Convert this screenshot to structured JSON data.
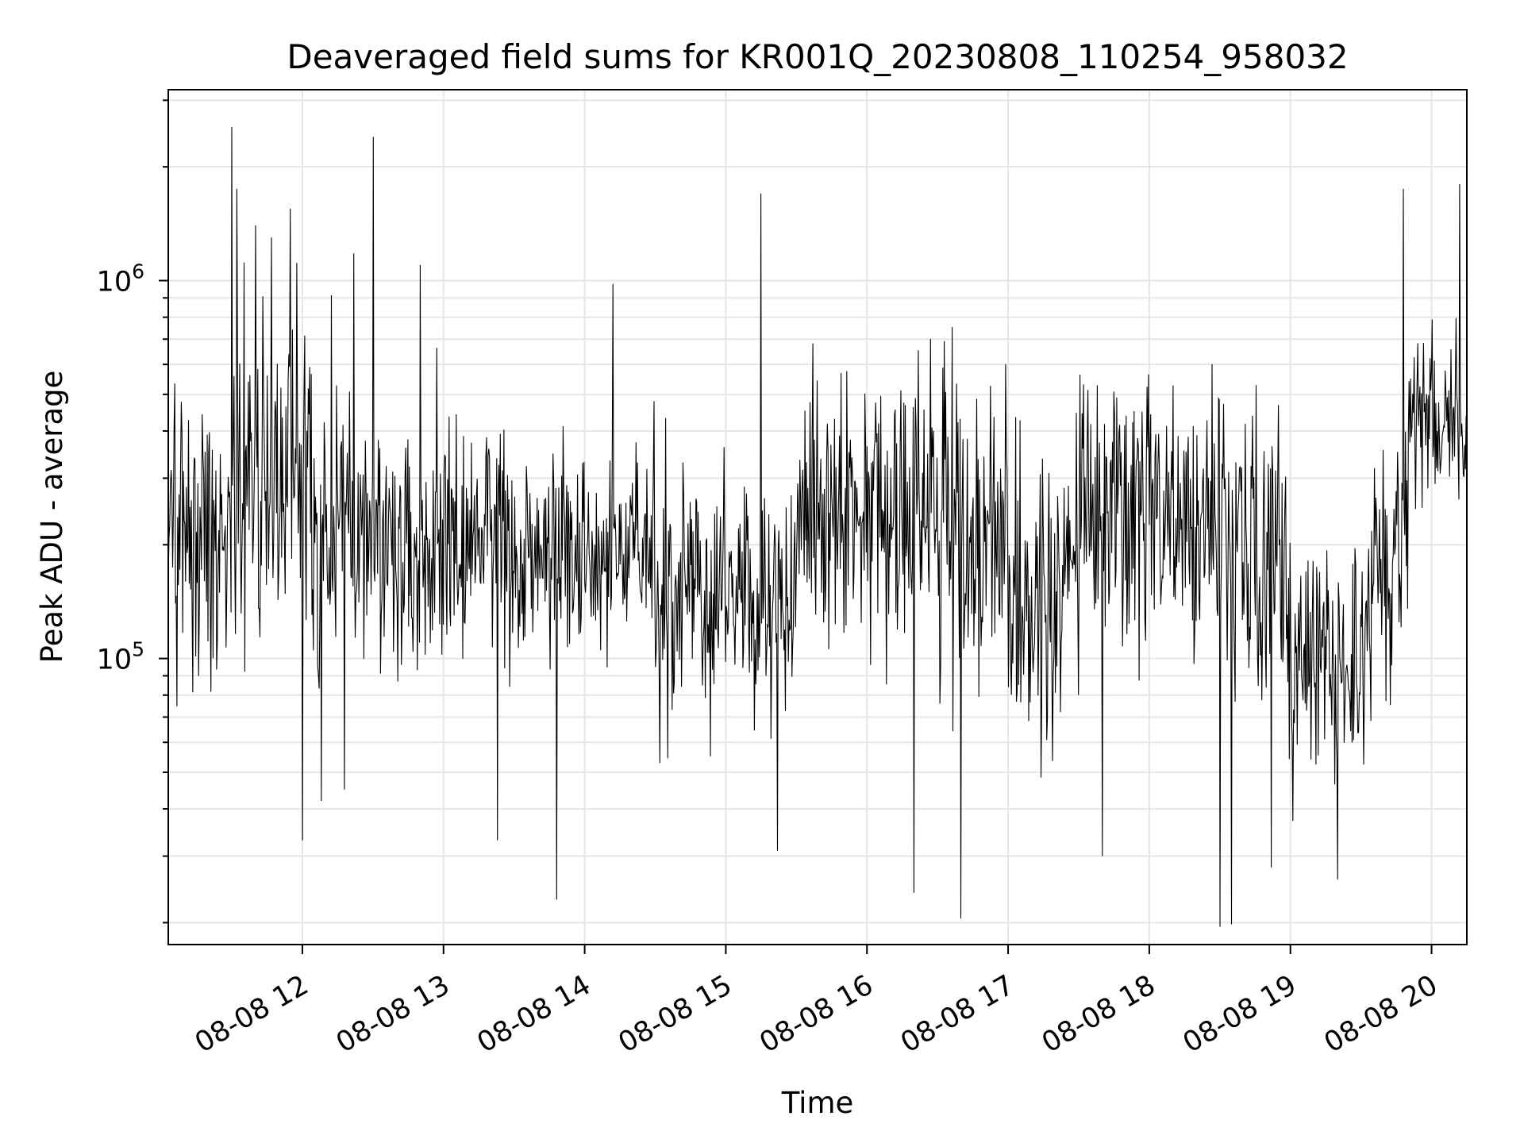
{
  "chart_data": {
    "type": "line",
    "title": "Deaveraged field sums for KR001Q_20230808_110254_958032",
    "xlabel": "Time",
    "ylabel": "Peak ADU - average",
    "yscale": "log",
    "ylim": [
      17500,
      3200000
    ],
    "xlim": [
      "2023-08-08 11:03",
      "2023-08-08 20:15"
    ],
    "grid": true,
    "x_tick_labels": [
      "08-08 12",
      "08-08 13",
      "08-08 14",
      "08-08 15",
      "08-08 16",
      "08-08 17",
      "08-08 18",
      "08-08 19",
      "08-08 20"
    ],
    "x_ticks": [
      "2023-08-08 12:00",
      "2023-08-08 13:00",
      "2023-08-08 14:00",
      "2023-08-08 15:00",
      "2023-08-08 16:00",
      "2023-08-08 17:00",
      "2023-08-08 18:00",
      "2023-08-08 19:00",
      "2023-08-08 20:00"
    ],
    "y_ticks": [
      {
        "value": 100000,
        "base": "10",
        "exp": "5"
      },
      {
        "value": 1000000,
        "base": "10",
        "exp": "6"
      }
    ],
    "series": [
      {
        "color": "#000000",
        "x_start": "2023-08-08 11:03",
        "x_end": "2023-08-08 20:15",
        "segments": [
          {
            "from": "2023-08-08 11:03",
            "to": "2023-08-08 11:30",
            "median": 200000,
            "spread_decades": 0.3
          },
          {
            "from": "2023-08-08 11:30",
            "to": "2023-08-08 12:20",
            "median": 290000,
            "spread_decades": 0.33
          },
          {
            "from": "2023-08-08 12:20",
            "to": "2023-08-08 13:30",
            "median": 210000,
            "spread_decades": 0.27
          },
          {
            "from": "2023-08-08 13:30",
            "to": "2023-08-08 14:30",
            "median": 190000,
            "spread_decades": 0.24
          },
          {
            "from": "2023-08-08 14:30",
            "to": "2023-08-08 15:30",
            "median": 140000,
            "spread_decades": 0.27
          },
          {
            "from": "2023-08-08 15:30",
            "to": "2023-08-08 16:30",
            "median": 260000,
            "spread_decades": 0.3
          },
          {
            "from": "2023-08-08 16:30",
            "to": "2023-08-08 17:00",
            "median": 230000,
            "spread_decades": 0.36
          },
          {
            "from": "2023-08-08 17:00",
            "to": "2023-08-08 17:30",
            "median": 140000,
            "spread_decades": 0.28
          },
          {
            "from": "2023-08-08 17:30",
            "to": "2023-08-08 18:30",
            "median": 240000,
            "spread_decades": 0.28
          },
          {
            "from": "2023-08-08 18:30",
            "to": "2023-08-08 19:00",
            "median": 180000,
            "spread_decades": 0.33
          },
          {
            "from": "2023-08-08 19:00",
            "to": "2023-08-08 19:35",
            "median": 100000,
            "spread_decades": 0.25
          },
          {
            "from": "2023-08-08 19:35",
            "to": "2023-08-08 19:50",
            "median": 190000,
            "spread_decades": 0.28
          },
          {
            "from": "2023-08-08 19:50",
            "to": "2023-08-08 20:15",
            "median": 440000,
            "spread_decades": 0.18
          }
        ],
        "spikes": [
          {
            "x": "2023-08-08 11:30",
            "y": 2550000
          },
          {
            "x": "2023-08-08 11:32",
            "y": 1750000
          },
          {
            "x": "2023-08-08 11:40",
            "y": 1400000
          },
          {
            "x": "2023-08-08 11:47",
            "y": 1300000
          },
          {
            "x": "2023-08-08 11:55",
            "y": 1550000
          },
          {
            "x": "2023-08-08 12:00",
            "y": 33000
          },
          {
            "x": "2023-08-08 12:08",
            "y": 42000
          },
          {
            "x": "2023-08-08 12:18",
            "y": 45000
          },
          {
            "x": "2023-08-08 12:22",
            "y": 1180000
          },
          {
            "x": "2023-08-08 12:30",
            "y": 2400000
          },
          {
            "x": "2023-08-08 12:50",
            "y": 1100000
          },
          {
            "x": "2023-08-08 13:23",
            "y": 33000
          },
          {
            "x": "2023-08-08 13:48",
            "y": 23000
          },
          {
            "x": "2023-08-08 14:12",
            "y": 980000
          },
          {
            "x": "2023-08-08 15:15",
            "y": 1700000
          },
          {
            "x": "2023-08-08 15:22",
            "y": 31000
          },
          {
            "x": "2023-08-08 16:20",
            "y": 24000
          },
          {
            "x": "2023-08-08 16:40",
            "y": 20500
          },
          {
            "x": "2023-08-08 17:40",
            "y": 30000
          },
          {
            "x": "2023-08-08 18:30",
            "y": 19500
          },
          {
            "x": "2023-08-08 18:35",
            "y": 19800
          },
          {
            "x": "2023-08-08 18:52",
            "y": 28000
          },
          {
            "x": "2023-08-08 19:20",
            "y": 26000
          },
          {
            "x": "2023-08-08 19:48",
            "y": 1750000
          },
          {
            "x": "2023-08-08 20:12",
            "y": 1800000
          }
        ]
      }
    ]
  }
}
